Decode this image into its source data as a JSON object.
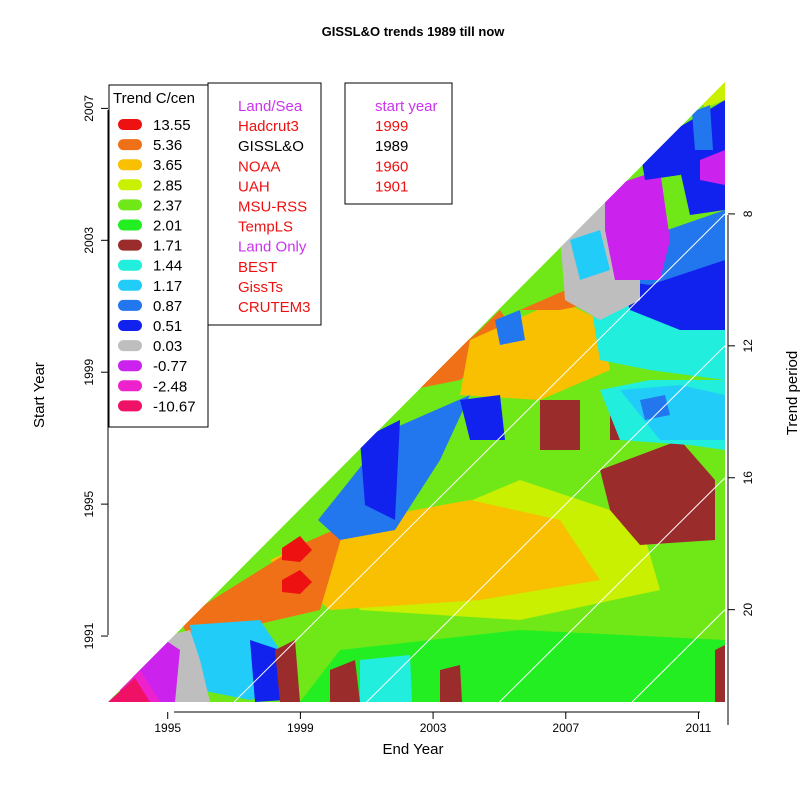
{
  "chart_data": {
    "type": "heatmap",
    "title": "GISSL&O trends 1989 till now",
    "xlabel": "End Year",
    "ylabel": "Start Year",
    "y2label": "Trend period",
    "x_ticks": [
      "1995",
      "1999",
      "2003",
      "2007",
      "2011"
    ],
    "y_ticks": [
      "1991",
      "1995",
      "1999",
      "2003",
      "2007"
    ],
    "y2_ticks": [
      "8",
      "12",
      "16",
      "20"
    ],
    "legend": {
      "title": "Trend C/cen",
      "entries": [
        {
          "label": "13.55",
          "color": "#ee1111"
        },
        {
          "label": "5.36",
          "color": "#f07018"
        },
        {
          "label": "3.65",
          "color": "#f8c000"
        },
        {
          "label": "2.85",
          "color": "#c8f000"
        },
        {
          "label": "2.37",
          "color": "#70e818"
        },
        {
          "label": "2.01",
          "color": "#22ee22"
        },
        {
          "label": "1.71",
          "color": "#9a2c2c"
        },
        {
          "label": "1.44",
          "color": "#22eedd"
        },
        {
          "label": "1.17",
          "color": "#22ccf8"
        },
        {
          "label": "0.87",
          "color": "#2277ee"
        },
        {
          "label": "0.51",
          "color": "#1122ee"
        },
        {
          "label": "0.03",
          "color": "#bebebe"
        },
        {
          "label": "-0.77",
          "color": "#cc22ee"
        },
        {
          "label": "-2.48",
          "color": "#ee22cc"
        },
        {
          "label": "-10.67",
          "color": "#ee1166"
        }
      ]
    },
    "datasets": {
      "entries": [
        {
          "label": "Land/Sea",
          "color": "#cc33ee"
        },
        {
          "label": "Hadcrut3",
          "color": "#ee1111"
        },
        {
          "label": "GISSL&O",
          "color": "#000000"
        },
        {
          "label": "NOAA",
          "color": "#ee1111"
        },
        {
          "label": "UAH",
          "color": "#ee1111"
        },
        {
          "label": "MSU-RSS",
          "color": "#ee1111"
        },
        {
          "label": "TempLS",
          "color": "#ee1111"
        },
        {
          "label": "Land Only",
          "color": "#cc33ee"
        },
        {
          "label": "BEST",
          "color": "#ee1111"
        },
        {
          "label": "GissTs",
          "color": "#ee1111"
        },
        {
          "label": "CRUTEM3",
          "color": "#ee1111"
        }
      ]
    },
    "start_years": {
      "entries": [
        {
          "label": "start year",
          "color": "#cc33ee"
        },
        {
          "label": "1999",
          "color": "#ee1111"
        },
        {
          "label": "1989",
          "color": "#000000"
        },
        {
          "label": "1960",
          "color": "#ee1111"
        },
        {
          "label": "1901",
          "color": "#ee1111"
        }
      ]
    },
    "x_range": [
      1993.2,
      2011.8
    ],
    "y_range": [
      1989.0,
      2007.8
    ],
    "trend_period_lines": [
      8,
      12,
      16,
      20
    ]
  }
}
